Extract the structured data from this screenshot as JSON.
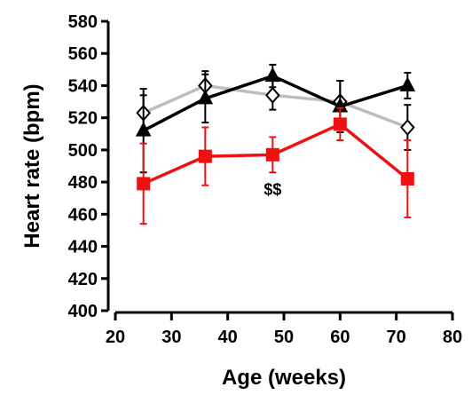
{
  "chart_data": {
    "type": "line",
    "xlabel": "Age (weeks)",
    "ylabel": "Heart rate (bpm)",
    "xlim": [
      20,
      80
    ],
    "ylim": [
      400,
      580
    ],
    "xticks": [
      20,
      30,
      40,
      50,
      60,
      70,
      80
    ],
    "yticks": [
      400,
      420,
      440,
      460,
      480,
      500,
      520,
      540,
      560,
      580
    ],
    "grid": false,
    "legend": "none",
    "x": [
      25,
      36,
      48,
      60,
      72
    ],
    "series": [
      {
        "color": "#bdbdbd",
        "marker": "open-diamond",
        "marker_fill": "#ffffff",
        "marker_stroke": "#000000",
        "values": [
          523,
          540,
          534,
          530,
          514
        ],
        "errors": [
          11,
          9,
          9,
          13,
          14
        ]
      },
      {
        "color": "#000000",
        "marker": "filled-triangle",
        "marker_fill": "#000000",
        "marker_stroke": "#000000",
        "values": [
          512,
          532,
          546,
          527,
          540
        ],
        "errors": [
          26,
          15,
          7,
          16,
          8
        ]
      },
      {
        "color": "#ee1111",
        "marker": "filled-square",
        "marker_fill": "#ee1111",
        "marker_stroke": "#ee1111",
        "values": [
          479,
          496,
          497,
          516,
          482
        ],
        "errors": [
          25,
          18,
          11,
          10,
          24
        ]
      }
    ],
    "annotations": [
      {
        "text": "$$",
        "x": 48,
        "y": 472
      }
    ]
  }
}
